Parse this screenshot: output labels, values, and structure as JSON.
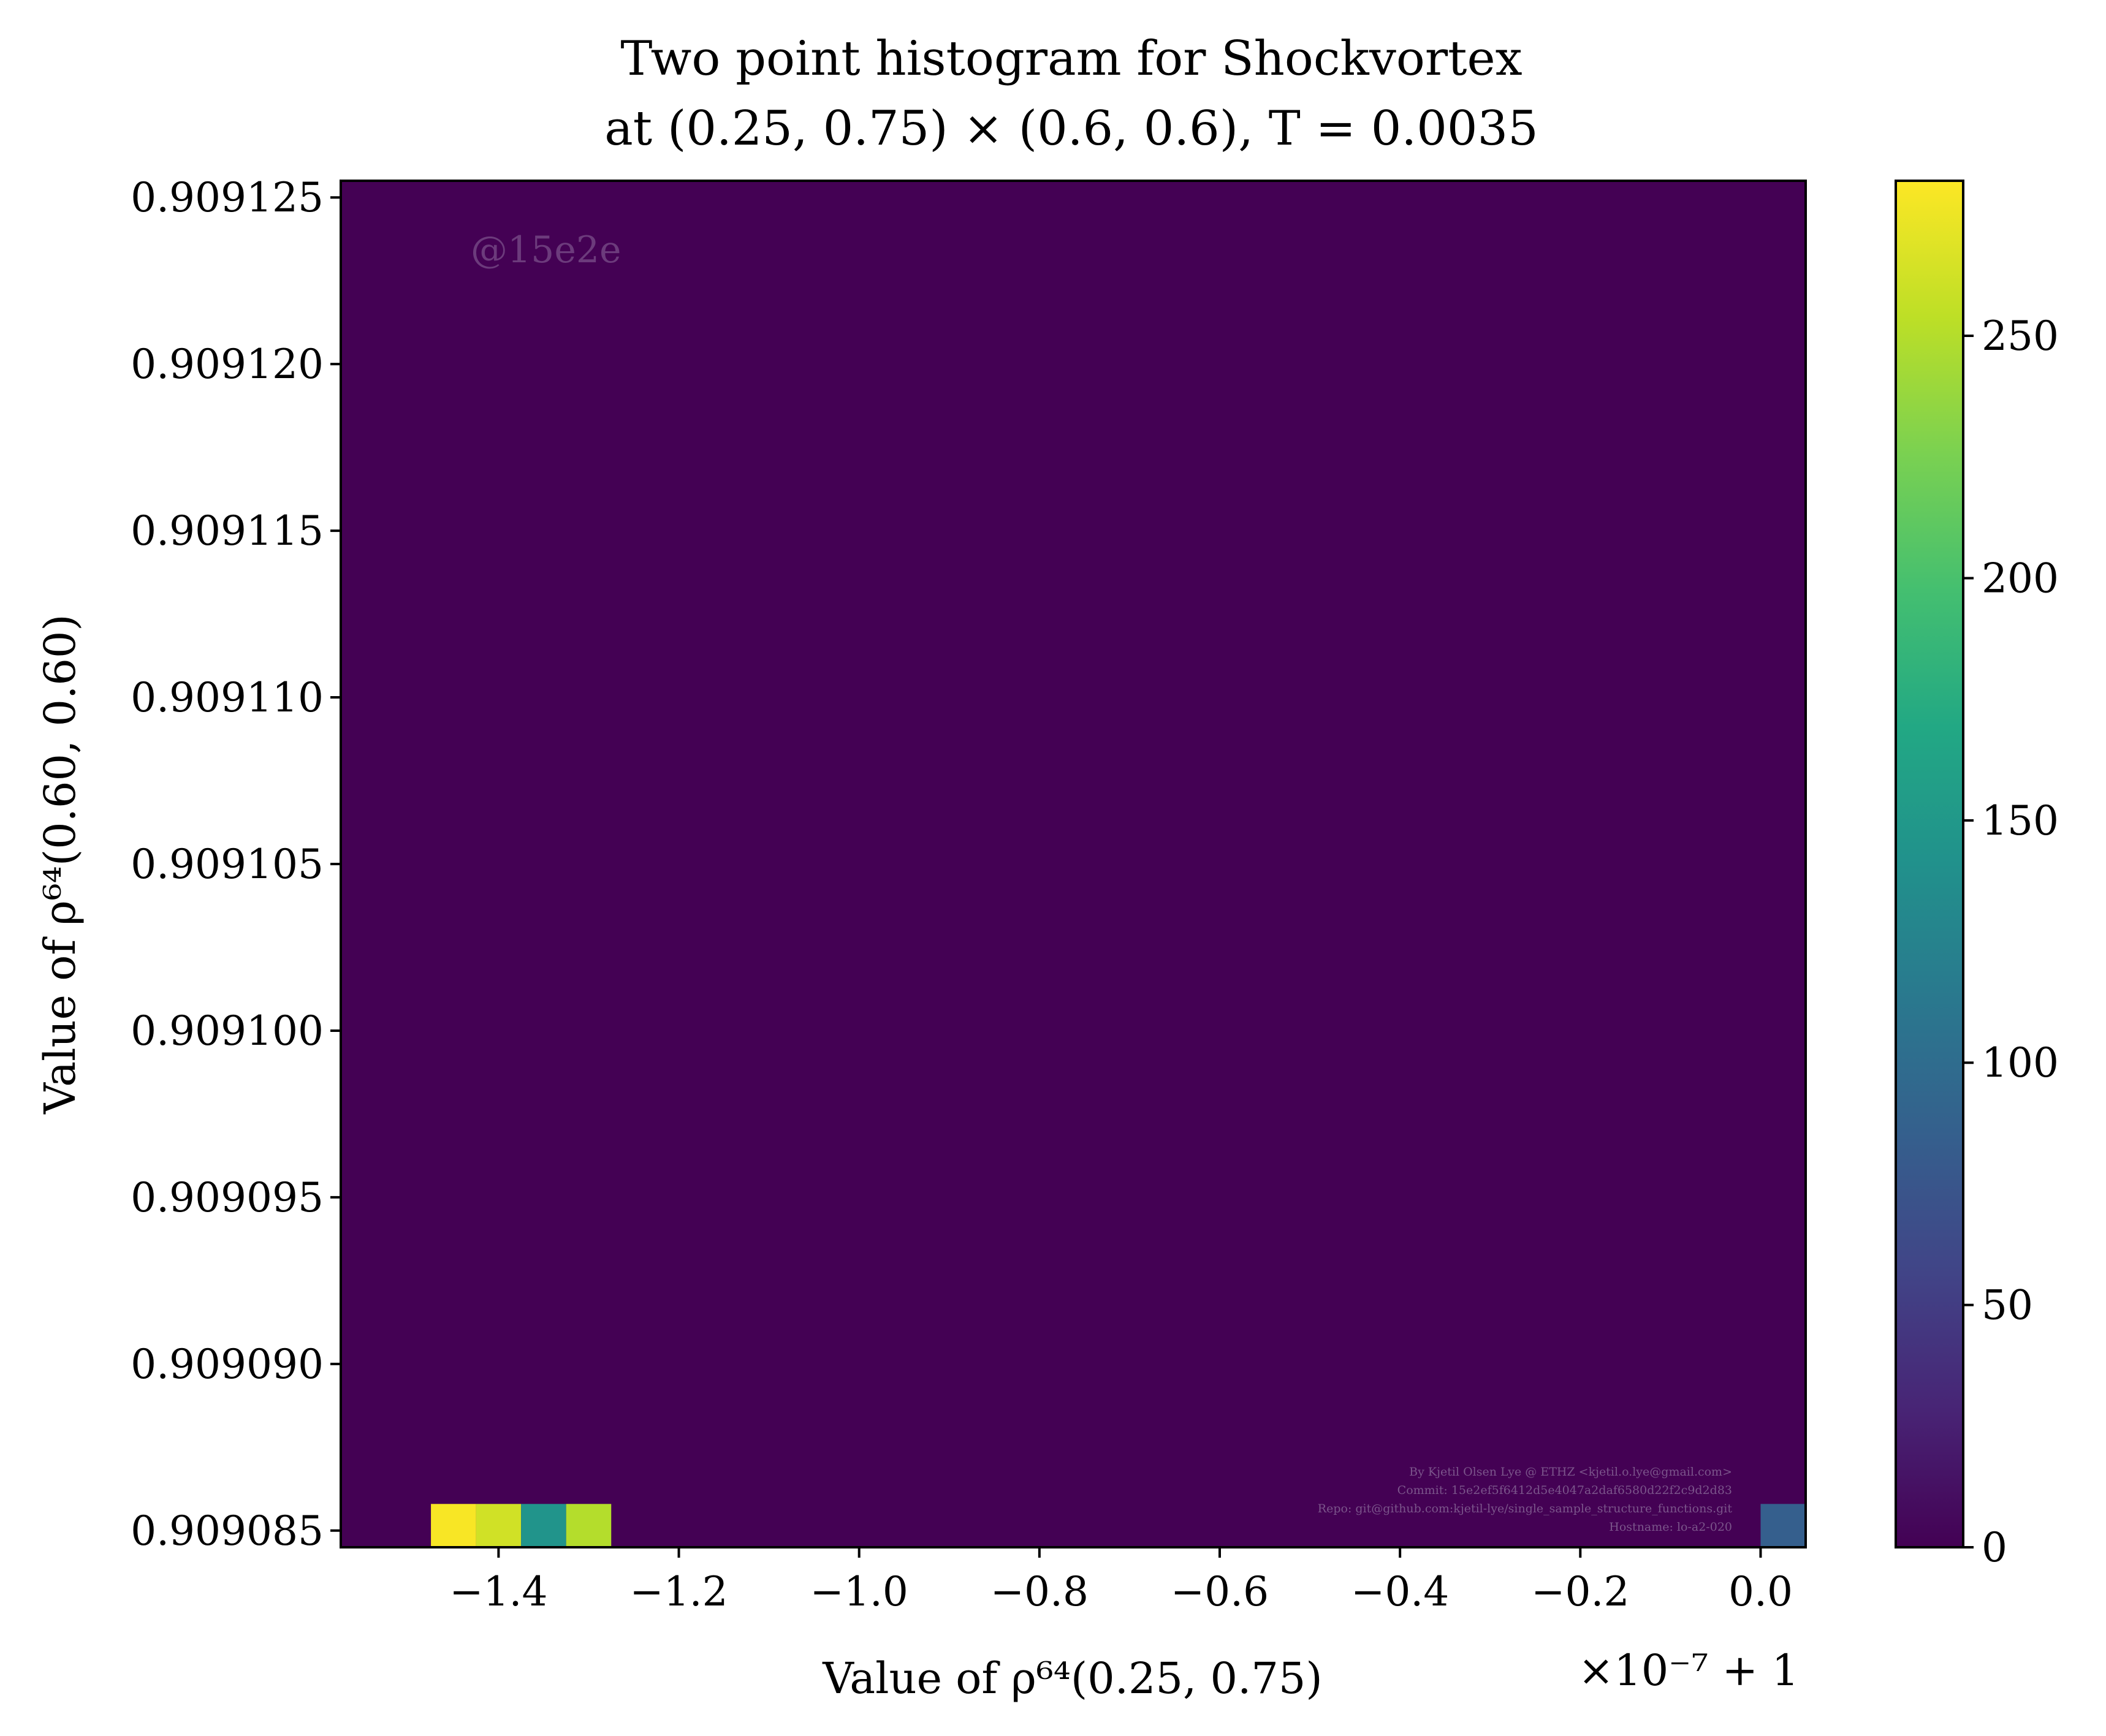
{
  "chart_data": {
    "type": "heatmap",
    "title_line1": "Two point histogram for Shockvortex",
    "title_line2": "at (0.25, 0.75) × (0.6, 0.6), T = 0.0035",
    "xlabel": "Value of ρ⁶⁴(0.25, 0.75)",
    "ylabel": "Value of ρ⁶⁴(0.60, 0.60)",
    "x_offset_label": "×10⁻⁷ + 1",
    "xlim": [
      -1.575,
      0.05
    ],
    "ylim": [
      0.9090845,
      0.9091255
    ],
    "x_ticks": [
      -1.4,
      -1.2,
      -1.0,
      -0.8,
      -0.6,
      -0.4,
      -0.2,
      0.0
    ],
    "x_tick_labels": [
      "−1.4",
      "−1.2",
      "−1.0",
      "−0.8",
      "−0.6",
      "−0.4",
      "−0.2",
      "0.0"
    ],
    "y_ticks": [
      0.909085,
      0.90909,
      0.909095,
      0.9091,
      0.909105,
      0.90911,
      0.909115,
      0.90912,
      0.909125
    ],
    "y_tick_labels": [
      "0.909085",
      "0.909090",
      "0.909095",
      "0.909100",
      "0.909105",
      "0.909110",
      "0.909115",
      "0.909120",
      "0.909125"
    ],
    "background_count": 0,
    "cells": [
      {
        "x0": -1.475,
        "x1": -1.425,
        "y0": 0.9090845,
        "y1": 0.9090858,
        "count": 280
      },
      {
        "x0": -1.425,
        "x1": -1.375,
        "y0": 0.9090845,
        "y1": 0.9090858,
        "count": 262
      },
      {
        "x0": -1.375,
        "x1": -1.325,
        "y0": 0.9090845,
        "y1": 0.9090858,
        "count": 145
      },
      {
        "x0": -1.325,
        "x1": -1.275,
        "y0": 0.9090845,
        "y1": 0.9090858,
        "count": 250
      },
      {
        "x0": 0.0,
        "x1": 0.05,
        "y0": 0.9090845,
        "y1": 0.9090858,
        "count": 85
      }
    ],
    "colorbar": {
      "min": 0,
      "max": 282,
      "ticks": [
        0,
        50,
        100,
        150,
        200,
        250
      ],
      "tick_labels": [
        "0",
        "50",
        "100",
        "150",
        "200",
        "250"
      ],
      "colormap": "viridis"
    },
    "watermark": "@15e2e",
    "credits": [
      "By Kjetil Olsen Lye @ ETHZ <kjetil.o.lye@gmail.com>",
      "Commit: 15e2ef5f6412d5e4047a2daf6580d22f2c9d2d83",
      "Repo: git@github.com:kjetil-lye/single_sample_structure_functions.git",
      "Hostname: lo-a2-020"
    ]
  }
}
